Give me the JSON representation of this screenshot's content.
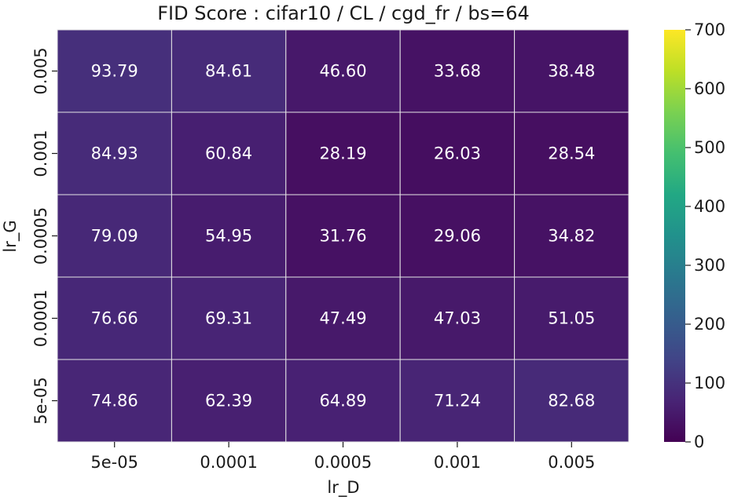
{
  "chart_data": {
    "type": "heatmap",
    "title": "FID Score : cifar10 / CL / cgd_fr / bs=64",
    "xlabel": "lr_D",
    "ylabel": "lr_G",
    "x_categories": [
      "5e-05",
      "0.0001",
      "0.0005",
      "0.001",
      "0.005"
    ],
    "y_categories": [
      "0.005",
      "0.001",
      "0.0005",
      "0.0001",
      "5e-05"
    ],
    "values": [
      [
        93.79,
        84.61,
        46.6,
        33.68,
        38.48
      ],
      [
        84.93,
        60.84,
        28.19,
        26.03,
        28.54
      ],
      [
        79.09,
        54.95,
        31.76,
        29.06,
        34.82
      ],
      [
        76.66,
        69.31,
        47.49,
        47.03,
        51.05
      ],
      [
        74.86,
        62.39,
        64.89,
        71.24,
        82.68
      ]
    ],
    "value_labels": [
      [
        "93.79",
        "84.61",
        "46.60",
        "33.68",
        "38.48"
      ],
      [
        "84.93",
        "60.84",
        "28.19",
        "26.03",
        "28.54"
      ],
      [
        "79.09",
        "54.95",
        "31.76",
        "29.06",
        "34.82"
      ],
      [
        "76.66",
        "69.31",
        "47.49",
        "47.03",
        "51.05"
      ],
      [
        "74.86",
        "62.39",
        "64.89",
        "71.24",
        "82.68"
      ]
    ],
    "colormap": "viridis",
    "colorbar": {
      "range": [
        0,
        700
      ],
      "ticks": [
        0,
        100,
        200,
        300,
        400,
        500,
        600,
        700
      ],
      "tick_labels": [
        "0",
        "100",
        "200",
        "300",
        "400",
        "500",
        "600",
        "700"
      ]
    },
    "grid": true,
    "cell_border_color": "#e6e6e6"
  }
}
